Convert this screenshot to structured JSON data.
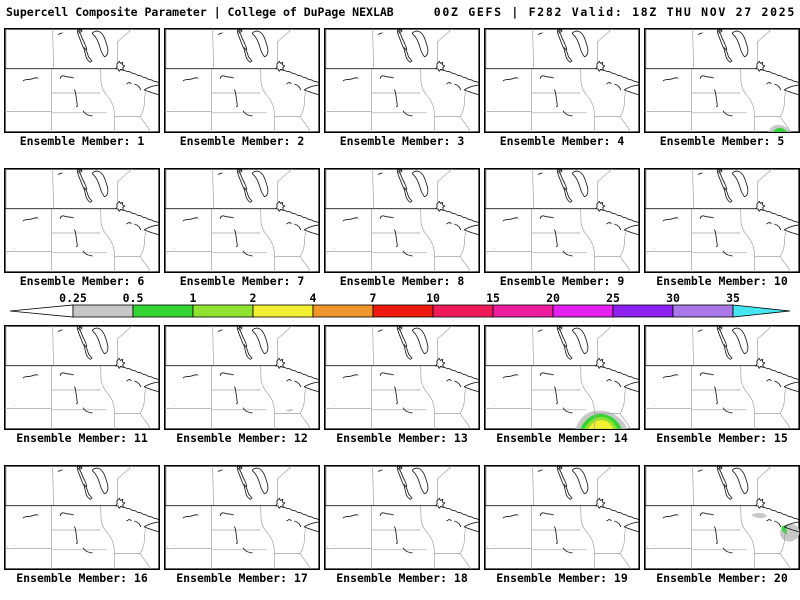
{
  "header": {
    "title_left": "Supercell Composite Parameter | College of DuPage NEXLAB",
    "title_right": "00Z GEFS | F282 Valid: 18Z THU NOV 27 2025"
  },
  "colorbar": {
    "tick_labels": [
      "0.25",
      "0.5",
      "1",
      "2",
      "4",
      "7",
      "10",
      "15",
      "20",
      "25",
      "30",
      "35"
    ],
    "segment_colors": [
      "#c6c6c6",
      "#35d435",
      "#8fe32f",
      "#f2ee32",
      "#f0962c",
      "#ef1a0e",
      "#f01a5a",
      "#ee1c9e",
      "#e320ee",
      "#8d22f0",
      "#a878e8"
    ],
    "under_color": "#ffffff",
    "over_color": "#45e6f0"
  },
  "anomaly_colors": {
    "ring": "#c8c8c8",
    "low": "#35d435",
    "mid": "#8fe32f",
    "high": "#f2ee32"
  },
  "panels": {
    "label_prefix": "Ensemble Member:",
    "members": [
      {
        "number": "1",
        "label": "Ensemble Member: 1",
        "anomalies": []
      },
      {
        "number": "2",
        "label": "Ensemble Member: 2",
        "anomalies": []
      },
      {
        "number": "3",
        "label": "Ensemble Member: 3",
        "anomalies": []
      },
      {
        "number": "4",
        "label": "Ensemble Member: 4",
        "anomalies": []
      },
      {
        "number": "5",
        "label": "Ensemble Member: 5",
        "anomalies": [
          "green_blob_south"
        ]
      },
      {
        "number": "6",
        "label": "Ensemble Member: 6",
        "anomalies": []
      },
      {
        "number": "7",
        "label": "Ensemble Member: 7",
        "anomalies": []
      },
      {
        "number": "8",
        "label": "Ensemble Member: 8",
        "anomalies": []
      },
      {
        "number": "9",
        "label": "Ensemble Member: 9",
        "anomalies": []
      },
      {
        "number": "10",
        "label": "Ensemble Member: 10",
        "anomalies": []
      },
      {
        "number": "11",
        "label": "Ensemble Member: 11",
        "anomalies": []
      },
      {
        "number": "12",
        "label": "Ensemble Member: 12",
        "anomalies": [
          "gray_speck_south"
        ]
      },
      {
        "number": "13",
        "label": "Ensemble Member: 13",
        "anomalies": []
      },
      {
        "number": "14",
        "label": "Ensemble Member: 14",
        "anomalies": [
          "green_yellow_blob_south"
        ]
      },
      {
        "number": "15",
        "label": "Ensemble Member: 15",
        "anomalies": []
      },
      {
        "number": "16",
        "label": "Ensemble Member: 16",
        "anomalies": []
      },
      {
        "number": "17",
        "label": "Ensemble Member: 17",
        "anomalies": []
      },
      {
        "number": "18",
        "label": "Ensemble Member: 18",
        "anomalies": []
      },
      {
        "number": "19",
        "label": "Ensemble Member: 19",
        "anomalies": []
      },
      {
        "number": "20",
        "label": "Ensemble Member: 20",
        "anomalies": [
          "gray_patch_north",
          "green_gray_blob_east"
        ]
      }
    ]
  }
}
